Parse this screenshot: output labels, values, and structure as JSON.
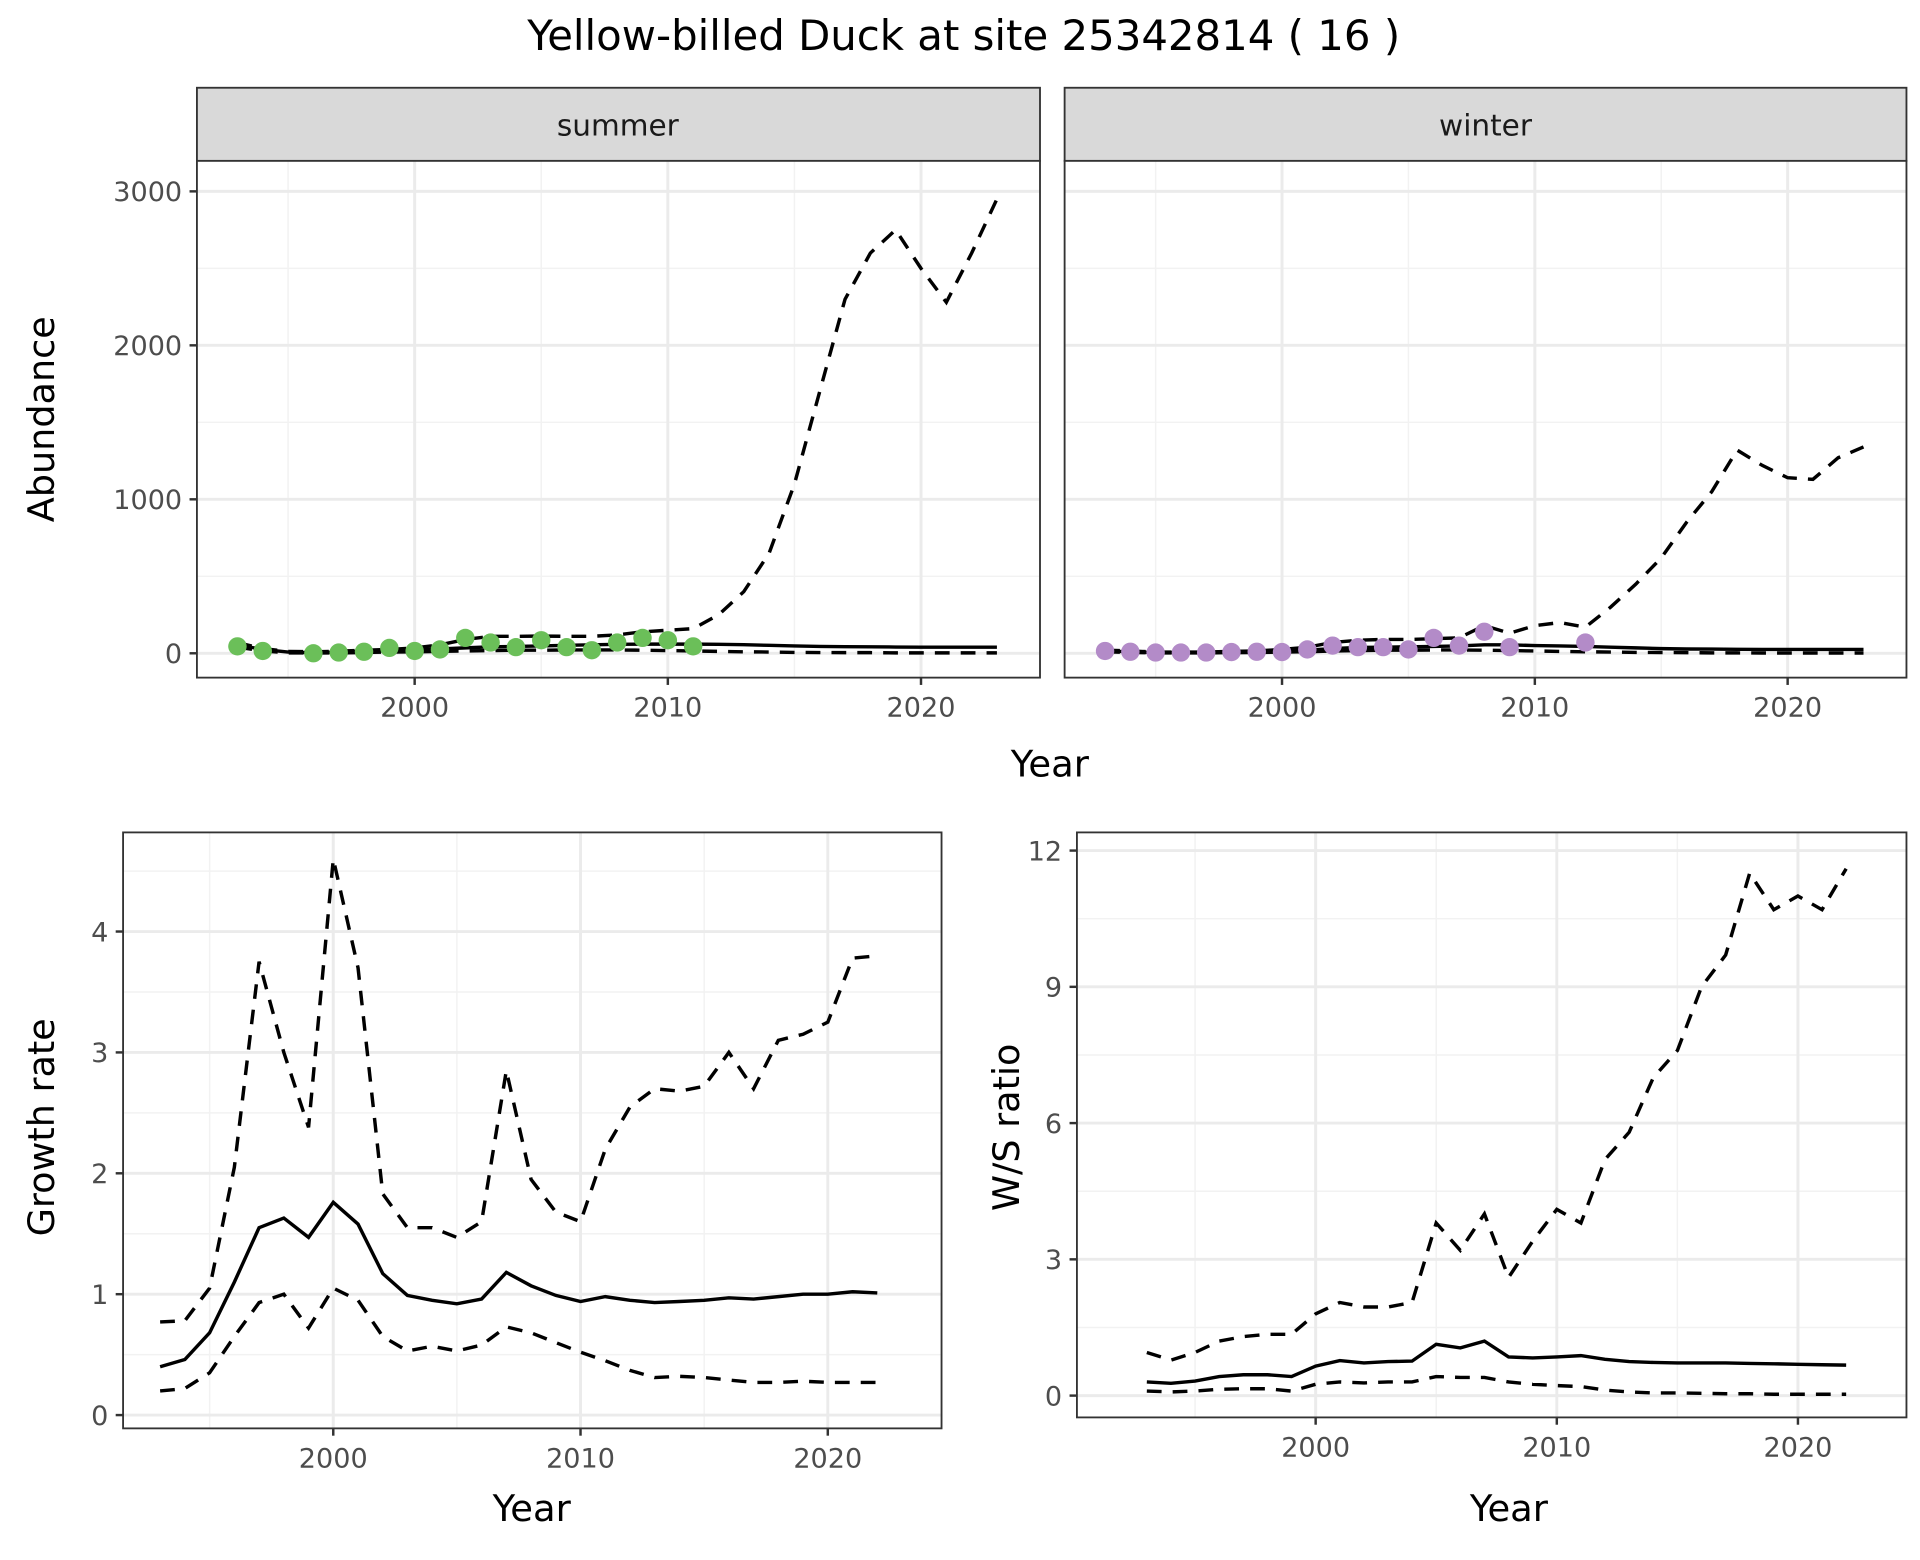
{
  "title": "Yellow-billed Duck at site 25342814 ( 16 )",
  "colors": {
    "summer": "#6BBF59",
    "winter": "#B38BC8",
    "line": "#000000",
    "strip": "#D9D9D9",
    "grid": "#EBEBEB"
  },
  "chart_data": [
    {
      "type": "line+scatter",
      "facet": "summer",
      "xlabel": "Year",
      "ylabel": "Abundance",
      "xticks": [
        2000,
        2010,
        2020
      ],
      "yticks": [
        0,
        1000,
        2000,
        3000
      ],
      "xlim": [
        1991.4,
        2024.7
      ],
      "ylim": [
        -158,
        3198
      ],
      "line_years": [
        1993,
        1994,
        1995,
        1996,
        1997,
        1998,
        1999,
        2000,
        2001,
        2002,
        2003,
        2004,
        2005,
        2006,
        2007,
        2008,
        2009,
        2010,
        2011,
        2012,
        2013,
        2014,
        2015,
        2016,
        2017,
        2018,
        2019,
        2020,
        2021,
        2022,
        2023
      ],
      "mean": [
        55,
        25,
        8,
        5,
        8,
        12,
        18,
        22,
        28,
        35,
        42,
        45,
        48,
        52,
        55,
        58,
        60,
        60,
        60,
        58,
        56,
        52,
        48,
        45,
        43,
        42,
        41,
        40,
        40,
        40,
        40
      ],
      "upper": [
        70,
        30,
        12,
        10,
        14,
        20,
        25,
        35,
        55,
        90,
        110,
        110,
        112,
        110,
        110,
        120,
        140,
        150,
        160,
        250,
        400,
        650,
        1100,
        1700,
        2300,
        2600,
        2750,
        2500,
        2280,
        2600,
        2950
      ],
      "lower": [
        40,
        15,
        3,
        2,
        3,
        5,
        8,
        10,
        12,
        15,
        18,
        20,
        20,
        22,
        22,
        22,
        20,
        18,
        15,
        12,
        10,
        8,
        6,
        5,
        4,
        4,
        3,
        3,
        3,
        3,
        3
      ],
      "points": {
        "x": [
          1993,
          1994,
          1996,
          1997,
          1998,
          1999,
          2000,
          2001,
          2002,
          2003,
          2004,
          2005,
          2006,
          2007,
          2008,
          2009,
          2010,
          2011
        ],
        "y": [
          45,
          15,
          0,
          5,
          10,
          35,
          15,
          25,
          100,
          70,
          40,
          85,
          40,
          20,
          70,
          100,
          85,
          45
        ]
      }
    },
    {
      "type": "line+scatter",
      "facet": "winter",
      "xlabel": "Year",
      "ylabel": "Abundance",
      "xticks": [
        2000,
        2010,
        2020
      ],
      "yticks": [
        0,
        1000,
        2000,
        3000
      ],
      "xlim": [
        1991.4,
        2024.7
      ],
      "ylim": [
        -158,
        3198
      ],
      "line_years": [
        1993,
        1994,
        1995,
        1996,
        1997,
        1998,
        1999,
        2000,
        2001,
        2002,
        2003,
        2004,
        2005,
        2006,
        2007,
        2008,
        2009,
        2010,
        2011,
        2012,
        2013,
        2014,
        2015,
        2016,
        2017,
        2018,
        2019,
        2020,
        2021,
        2022,
        2023
      ],
      "mean": [
        15,
        10,
        5,
        5,
        5,
        8,
        10,
        15,
        20,
        30,
        38,
        40,
        42,
        45,
        48,
        55,
        55,
        50,
        48,
        45,
        40,
        35,
        30,
        28,
        27,
        26,
        25,
        25,
        25,
        25,
        25
      ],
      "upper": [
        20,
        15,
        8,
        8,
        8,
        12,
        15,
        25,
        40,
        70,
        85,
        90,
        90,
        95,
        100,
        180,
        130,
        180,
        200,
        170,
        300,
        450,
        620,
        850,
        1050,
        1320,
        1220,
        1140,
        1130,
        1270,
        1340
      ],
      "lower": [
        10,
        6,
        3,
        3,
        3,
        4,
        5,
        8,
        10,
        15,
        18,
        20,
        20,
        22,
        22,
        20,
        18,
        15,
        12,
        10,
        8,
        6,
        5,
        4,
        3,
        3,
        2,
        2,
        2,
        2,
        2
      ],
      "points": {
        "x": [
          1993,
          1994,
          1995,
          1996,
          1997,
          1998,
          1999,
          2000,
          2001,
          2002,
          2003,
          2004,
          2005,
          2006,
          2007,
          2008,
          2009,
          2012
        ],
        "y": [
          15,
          10,
          5,
          5,
          5,
          8,
          10,
          8,
          25,
          50,
          40,
          40,
          25,
          100,
          50,
          140,
          40,
          70
        ]
      }
    },
    {
      "type": "line",
      "xlabel": "Year",
      "ylabel": "Growth rate",
      "xticks": [
        2000,
        2010,
        2020
      ],
      "yticks": [
        0,
        1,
        2,
        3,
        4
      ],
      "xlim": [
        1991.5,
        2024.6
      ],
      "ylim": [
        -0.11,
        4.82
      ],
      "line_years": [
        1993,
        1994,
        1995,
        1996,
        1997,
        1998,
        1999,
        2000,
        2001,
        2002,
        2003,
        2004,
        2005,
        2006,
        2007,
        2008,
        2009,
        2010,
        2011,
        2012,
        2013,
        2014,
        2015,
        2016,
        2017,
        2018,
        2019,
        2020,
        2021,
        2022
      ],
      "mean": [
        0.4,
        0.46,
        0.68,
        1.1,
        1.55,
        1.63,
        1.47,
        1.76,
        1.58,
        1.17,
        0.99,
        0.95,
        0.92,
        0.96,
        1.18,
        1.07,
        0.99,
        0.94,
        0.98,
        0.95,
        0.93,
        0.94,
        0.95,
        0.97,
        0.96,
        0.98,
        1.0,
        1.0,
        1.02,
        1.01
      ],
      "upper": [
        0.77,
        0.78,
        1.05,
        2.05,
        3.75,
        3.0,
        2.38,
        4.6,
        3.7,
        1.83,
        1.55,
        1.55,
        1.47,
        1.6,
        2.85,
        1.95,
        1.68,
        1.6,
        2.2,
        2.55,
        2.7,
        2.68,
        2.72,
        3.0,
        2.7,
        3.1,
        3.15,
        3.25,
        3.78,
        3.8
      ],
      "lower": [
        0.2,
        0.22,
        0.35,
        0.65,
        0.93,
        1.0,
        0.72,
        1.05,
        0.95,
        0.65,
        0.53,
        0.57,
        0.53,
        0.58,
        0.73,
        0.68,
        0.6,
        0.52,
        0.45,
        0.37,
        0.31,
        0.32,
        0.31,
        0.29,
        0.27,
        0.27,
        0.28,
        0.27,
        0.27,
        0.27
      ]
    },
    {
      "type": "line",
      "xlabel": "Year",
      "ylabel": "W/S ratio",
      "xticks": [
        2000,
        2010,
        2020
      ],
      "yticks": [
        0,
        3,
        6,
        9,
        12
      ],
      "xlim": [
        1990.1,
        2024.5
      ],
      "ylim": [
        -0.48,
        12.4
      ],
      "line_years": [
        1993,
        1994,
        1995,
        1996,
        1997,
        1998,
        1999,
        2000,
        2001,
        2002,
        2003,
        2004,
        2005,
        2006,
        2007,
        2008,
        2009,
        2010,
        2011,
        2012,
        2013,
        2014,
        2015,
        2016,
        2017,
        2018,
        2019,
        2020,
        2021,
        2022
      ],
      "mean": [
        0.3,
        0.27,
        0.32,
        0.42,
        0.46,
        0.46,
        0.42,
        0.65,
        0.77,
        0.72,
        0.75,
        0.76,
        1.13,
        1.05,
        1.2,
        0.85,
        0.83,
        0.85,
        0.88,
        0.8,
        0.75,
        0.73,
        0.72,
        0.72,
        0.72,
        0.71,
        0.7,
        0.69,
        0.68,
        0.67
      ],
      "upper": [
        0.95,
        0.78,
        0.95,
        1.2,
        1.3,
        1.35,
        1.35,
        1.8,
        2.05,
        1.95,
        1.95,
        2.05,
        3.8,
        3.2,
        4.0,
        2.6,
        3.4,
        4.1,
        3.8,
        5.2,
        5.8,
        7.0,
        7.6,
        9.0,
        9.7,
        11.5,
        10.7,
        11.0,
        10.7,
        11.6
      ],
      "lower": [
        0.1,
        0.08,
        0.1,
        0.14,
        0.15,
        0.15,
        0.1,
        0.25,
        0.3,
        0.28,
        0.3,
        0.3,
        0.42,
        0.4,
        0.4,
        0.3,
        0.25,
        0.22,
        0.2,
        0.12,
        0.08,
        0.06,
        0.06,
        0.05,
        0.04,
        0.04,
        0.03,
        0.03,
        0.03,
        0.03
      ]
    }
  ]
}
